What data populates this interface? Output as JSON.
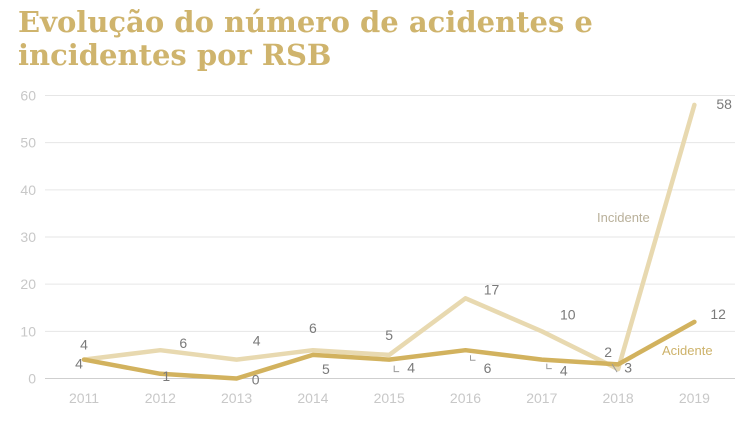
{
  "title": "Evolução do número de acidentes e incidentes por RSB",
  "chart_data": {
    "type": "line",
    "title": "Evolução do número de acidentes e incidentes por RSB",
    "x": [
      "2011",
      "2012",
      "2013",
      "2014",
      "2015",
      "2016",
      "2017",
      "2018",
      "2019"
    ],
    "yticks": [
      "0",
      "10",
      "20",
      "30",
      "40",
      "50",
      "60"
    ],
    "ylim": [
      0,
      60
    ],
    "grid": true,
    "series": [
      {
        "name": "Incidente",
        "color": "#e8d9b0",
        "values": [
          4,
          6,
          4,
          6,
          5,
          17,
          10,
          2,
          58
        ],
        "labels": [
          "4",
          "6",
          "4",
          "6",
          "5",
          "17",
          "10",
          "2",
          "58"
        ]
      },
      {
        "name": "Acidente",
        "color": "#d2b25e",
        "values": [
          4,
          1,
          0,
          5,
          4,
          6,
          4,
          3,
          12
        ],
        "labels": [
          "4",
          "1",
          "0",
          "5",
          "4",
          "6",
          "4",
          "3",
          "12"
        ]
      }
    ]
  }
}
